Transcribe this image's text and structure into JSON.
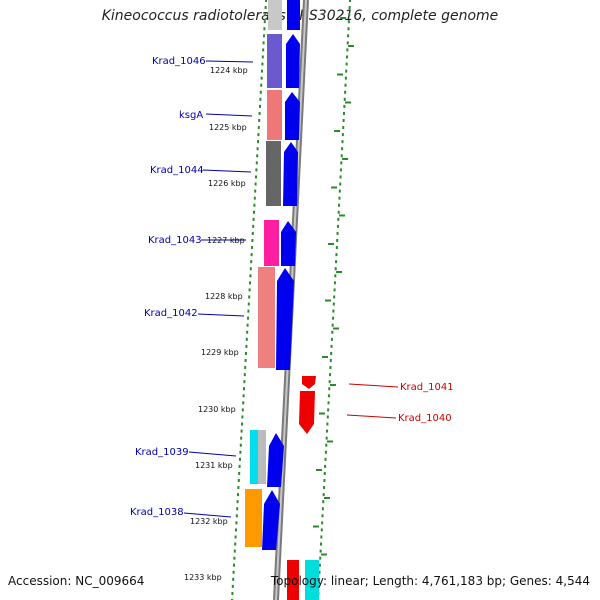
{
  "title": "Kineococcus radiotolerans SRS30216, complete genome",
  "accession": "Accession: NC_009664",
  "topology": "Topology: linear; Length: 4,761,183 bp; Genes: 4,544",
  "colors": {
    "forward_label": "#0000aa",
    "reverse_label": "#cc0000",
    "forward_arrow": "#0000ee",
    "reverse_arrow": "#ee0000",
    "backbone": "#8a8a8a",
    "ticks": "#2a8a2a"
  },
  "kbp_labels": [
    "1224 kbp",
    "1225 kbp",
    "1226 kbp",
    "1227 kbp",
    "1228 kbp",
    "1229 kbp",
    "1230 kbp",
    "1231 kbp",
    "1232 kbp",
    "1233 kbp"
  ],
  "gene_labels": [
    {
      "text": "Krad_1046",
      "strand": "forward"
    },
    {
      "text": "ksgA",
      "strand": "forward"
    },
    {
      "text": "Krad_1044",
      "strand": "forward"
    },
    {
      "text": "Krad_1043",
      "strand": "forward"
    },
    {
      "text": "Krad_1042",
      "strand": "forward"
    },
    {
      "text": "Krad_1041",
      "strand": "reverse"
    },
    {
      "text": "Krad_1040",
      "strand": "reverse"
    },
    {
      "text": "Krad_1039",
      "strand": "forward"
    },
    {
      "text": "Krad_1038",
      "strand": "forward"
    }
  ]
}
